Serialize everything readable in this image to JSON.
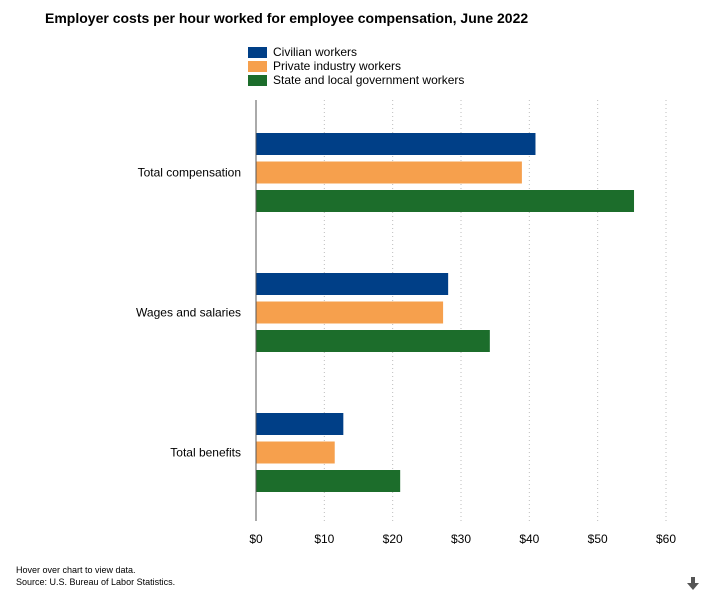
{
  "chart_data": {
    "type": "bar",
    "orientation": "horizontal",
    "title": "Employer costs per hour worked for employee compensation, June 2022",
    "categories": [
      "Total compensation",
      "Wages and salaries",
      "Total benefits"
    ],
    "series": [
      {
        "name": "Civilian workers",
        "color": "#003f87",
        "values": [
          40.9,
          28.12,
          12.78
        ]
      },
      {
        "name": "Private industry workers",
        "color": "#f6a04d",
        "values": [
          38.91,
          27.38,
          11.52
        ]
      },
      {
        "name": "State and local government workers",
        "color": "#1c6d2b",
        "values": [
          55.32,
          34.22,
          21.1
        ]
      }
    ],
    "xlim": [
      0,
      60
    ],
    "xticks": [
      0,
      10,
      20,
      30,
      40,
      50,
      60
    ],
    "xtick_labels": [
      "$0",
      "$10",
      "$20",
      "$30",
      "$40",
      "$50",
      "$60"
    ],
    "grid": "vertical dotted",
    "legend_position": "top"
  },
  "footer": {
    "hover_note": "Hover over chart to view data.",
    "source": "Source: U.S. Bureau of Labor Statistics."
  },
  "icons": {
    "download": "download-arrow-icon"
  }
}
